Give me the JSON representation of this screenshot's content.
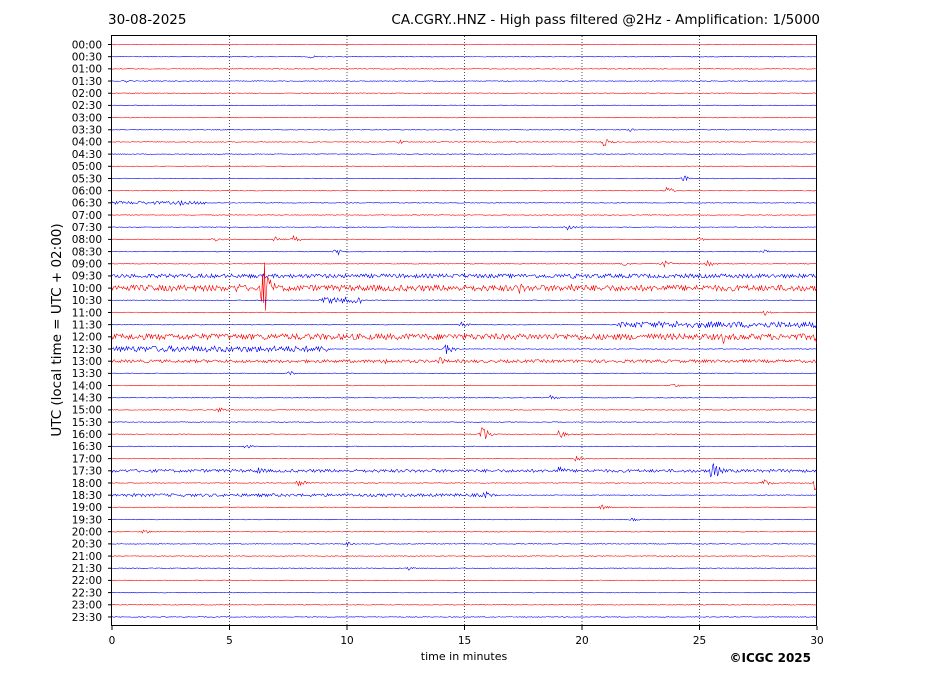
{
  "date": "30-08-2025",
  "title": "CA.CGRY..HNZ - High pass filtered @2Hz - Amplification: 1/5000",
  "copyright": "©ICGC 2025",
  "chart_data": {
    "type": "line",
    "title": "CA.CGRY..HNZ - High pass filtered @2Hz - Amplification: 1/5000",
    "xlabel": "time in minutes",
    "ylabel": "UTC (local time = UTC + 02:00)",
    "xlim": [
      0,
      30
    ],
    "x_ticks": [
      0,
      5,
      10,
      15,
      20,
      25,
      30
    ],
    "grid": "dotted vertical lines at 5-minute intervals",
    "colors": {
      "even_rows": "#ff0000",
      "odd_rows": "#0000ff"
    },
    "rows": [
      "00:00",
      "00:30",
      "01:00",
      "01:30",
      "02:00",
      "02:30",
      "03:00",
      "03:30",
      "04:00",
      "04:30",
      "05:00",
      "05:30",
      "06:00",
      "06:30",
      "07:00",
      "07:30",
      "08:00",
      "08:30",
      "09:00",
      "09:30",
      "10:00",
      "10:30",
      "11:00",
      "11:30",
      "12:00",
      "12:30",
      "13:00",
      "13:30",
      "14:00",
      "14:30",
      "15:00",
      "15:30",
      "16:00",
      "16:30",
      "17:00",
      "17:30",
      "18:00",
      "18:30",
      "19:00",
      "19:30",
      "20:00",
      "20:30",
      "21:00",
      "21:30",
      "22:00",
      "22:30",
      "23:00",
      "23:30"
    ],
    "events": [
      {
        "row": "00:30",
        "minute": 8.4,
        "amp": 2
      },
      {
        "row": "01:30",
        "minute": 0.5,
        "amp": 2
      },
      {
        "row": "03:30",
        "minute": 22.0,
        "amp": 2
      },
      {
        "row": "04:00",
        "minute": 12.2,
        "amp": 3
      },
      {
        "row": "04:00",
        "minute": 17.0,
        "amp": 2
      },
      {
        "row": "04:00",
        "minute": 20.9,
        "amp": 5
      },
      {
        "row": "05:30",
        "minute": 24.3,
        "amp": 4
      },
      {
        "row": "06:00",
        "minute": 23.6,
        "amp": 5
      },
      {
        "row": "06:30",
        "minute": 2.8,
        "amp": 4
      },
      {
        "row": "07:30",
        "minute": 19.3,
        "amp": 5
      },
      {
        "row": "08:00",
        "minute": 4.3,
        "amp": 3
      },
      {
        "row": "08:00",
        "minute": 6.9,
        "amp": 4
      },
      {
        "row": "08:00",
        "minute": 7.7,
        "amp": 4
      },
      {
        "row": "08:00",
        "minute": 24.9,
        "amp": 3
      },
      {
        "row": "08:30",
        "minute": 9.5,
        "amp": 5
      },
      {
        "row": "08:30",
        "minute": 27.6,
        "amp": 3
      },
      {
        "row": "09:00",
        "minute": 21.7,
        "amp": 4
      },
      {
        "row": "09:00",
        "minute": 23.4,
        "amp": 5
      },
      {
        "row": "09:00",
        "minute": 25.3,
        "amp": 4
      },
      {
        "row": "09:30",
        "minute": 19.6,
        "amp": 4
      },
      {
        "row": "10:00",
        "minute": 6.4,
        "amp": 36
      },
      {
        "row": "10:00",
        "minute": 5.3,
        "amp": 7
      },
      {
        "row": "10:00",
        "minute": 17.3,
        "amp": 8
      },
      {
        "row": "10:00",
        "minute": 19.5,
        "amp": 8
      },
      {
        "row": "10:30",
        "minute": 9.2,
        "amp": 5
      },
      {
        "row": "11:00",
        "minute": 27.7,
        "amp": 4
      },
      {
        "row": "11:30",
        "minute": 14.8,
        "amp": 4
      },
      {
        "row": "11:30",
        "minute": 24.0,
        "amp": 4
      },
      {
        "row": "12:00",
        "minute": 26.0,
        "amp": 7
      },
      {
        "row": "12:00",
        "minute": 29.9,
        "amp": 9
      },
      {
        "row": "12:30",
        "minute": 14.2,
        "amp": 7
      },
      {
        "row": "13:00",
        "minute": 13.9,
        "amp": 5
      },
      {
        "row": "13:00",
        "minute": 11.6,
        "amp": 4
      },
      {
        "row": "13:30",
        "minute": 7.5,
        "amp": 3
      },
      {
        "row": "14:00",
        "minute": 23.8,
        "amp": 3
      },
      {
        "row": "14:30",
        "minute": 18.6,
        "amp": 3
      },
      {
        "row": "15:00",
        "minute": 4.5,
        "amp": 4
      },
      {
        "row": "16:00",
        "minute": 15.7,
        "amp": 12
      },
      {
        "row": "16:00",
        "minute": 19.0,
        "amp": 5
      },
      {
        "row": "16:30",
        "minute": 5.6,
        "amp": 3
      },
      {
        "row": "17:00",
        "minute": 19.7,
        "amp": 3
      },
      {
        "row": "17:30",
        "minute": 25.5,
        "amp": 15
      },
      {
        "row": "17:30",
        "minute": 6.2,
        "amp": 5
      },
      {
        "row": "17:30",
        "minute": 19.0,
        "amp": 6
      },
      {
        "row": "18:00",
        "minute": 7.9,
        "amp": 7
      },
      {
        "row": "18:00",
        "minute": 27.7,
        "amp": 5
      },
      {
        "row": "18:00",
        "minute": 29.9,
        "amp": 12
      },
      {
        "row": "18:30",
        "minute": 15.8,
        "amp": 6
      },
      {
        "row": "19:00",
        "minute": 20.8,
        "amp": 3
      },
      {
        "row": "19:30",
        "minute": 22.1,
        "amp": 3
      },
      {
        "row": "20:00",
        "minute": 1.3,
        "amp": 3
      },
      {
        "row": "20:30",
        "minute": 9.9,
        "amp": 3
      },
      {
        "row": "21:30",
        "minute": 12.6,
        "amp": 3
      }
    ],
    "noisy_bands": [
      {
        "row": "09:30",
        "from": 0,
        "to": 30,
        "level": 2
      },
      {
        "row": "10:00",
        "from": 0,
        "to": 30,
        "level": 3
      },
      {
        "row": "10:30",
        "from": 8.8,
        "to": 10.6,
        "level": 3
      },
      {
        "row": "11:30",
        "from": 21.5,
        "to": 30,
        "level": 3
      },
      {
        "row": "12:00",
        "from": 0,
        "to": 30,
        "level": 3
      },
      {
        "row": "12:30",
        "from": 0,
        "to": 9.3,
        "level": 3
      },
      {
        "row": "13:00",
        "from": 0,
        "to": 30,
        "level": 1.5
      },
      {
        "row": "17:30",
        "from": 0,
        "to": 30,
        "level": 1.5
      },
      {
        "row": "18:30",
        "from": 0,
        "to": 16,
        "level": 1.5
      },
      {
        "row": "06:30",
        "from": 0,
        "to": 4,
        "level": 1.5
      }
    ]
  }
}
